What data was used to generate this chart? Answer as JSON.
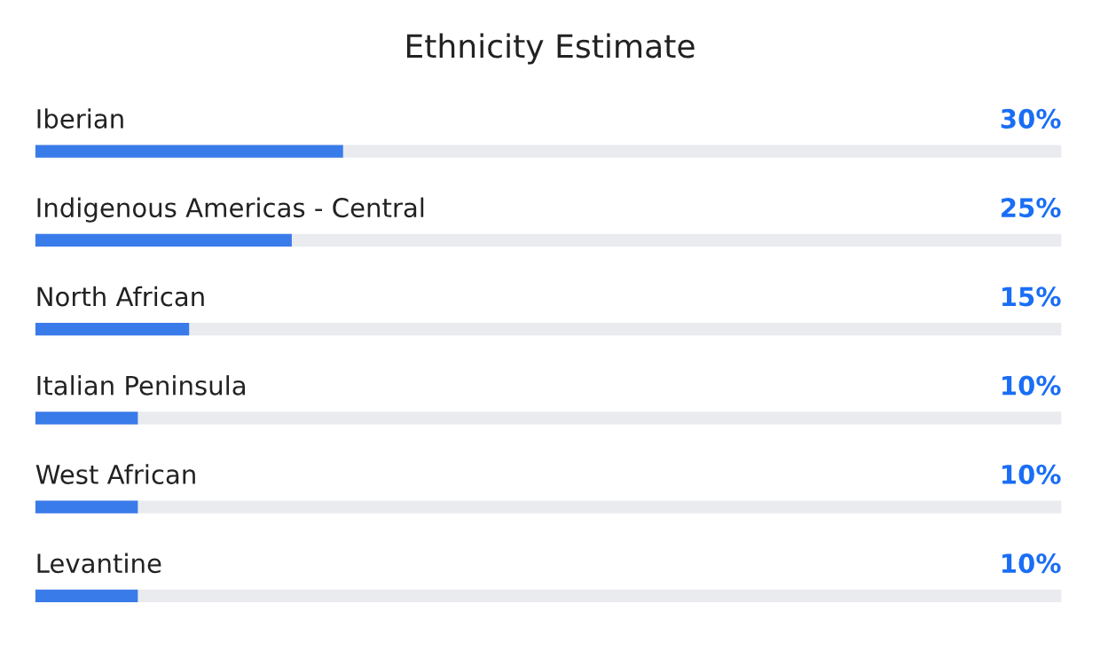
{
  "chart_data": {
    "type": "bar",
    "orientation": "horizontal",
    "title": "Ethnicity Estimate",
    "categories": [
      "Iberian",
      "Indigenous Americas - Central",
      "North African",
      "Italian Peninsula",
      "West African",
      "Levantine"
    ],
    "series": [
      {
        "color": "#3a7bea",
        "values": [
          30,
          25,
          15,
          10,
          10,
          10
        ],
        "value_labels": [
          "30%",
          "25%",
          "15%",
          "10%",
          "10%",
          "10%"
        ]
      }
    ],
    "xlim": [
      0,
      100
    ]
  }
}
